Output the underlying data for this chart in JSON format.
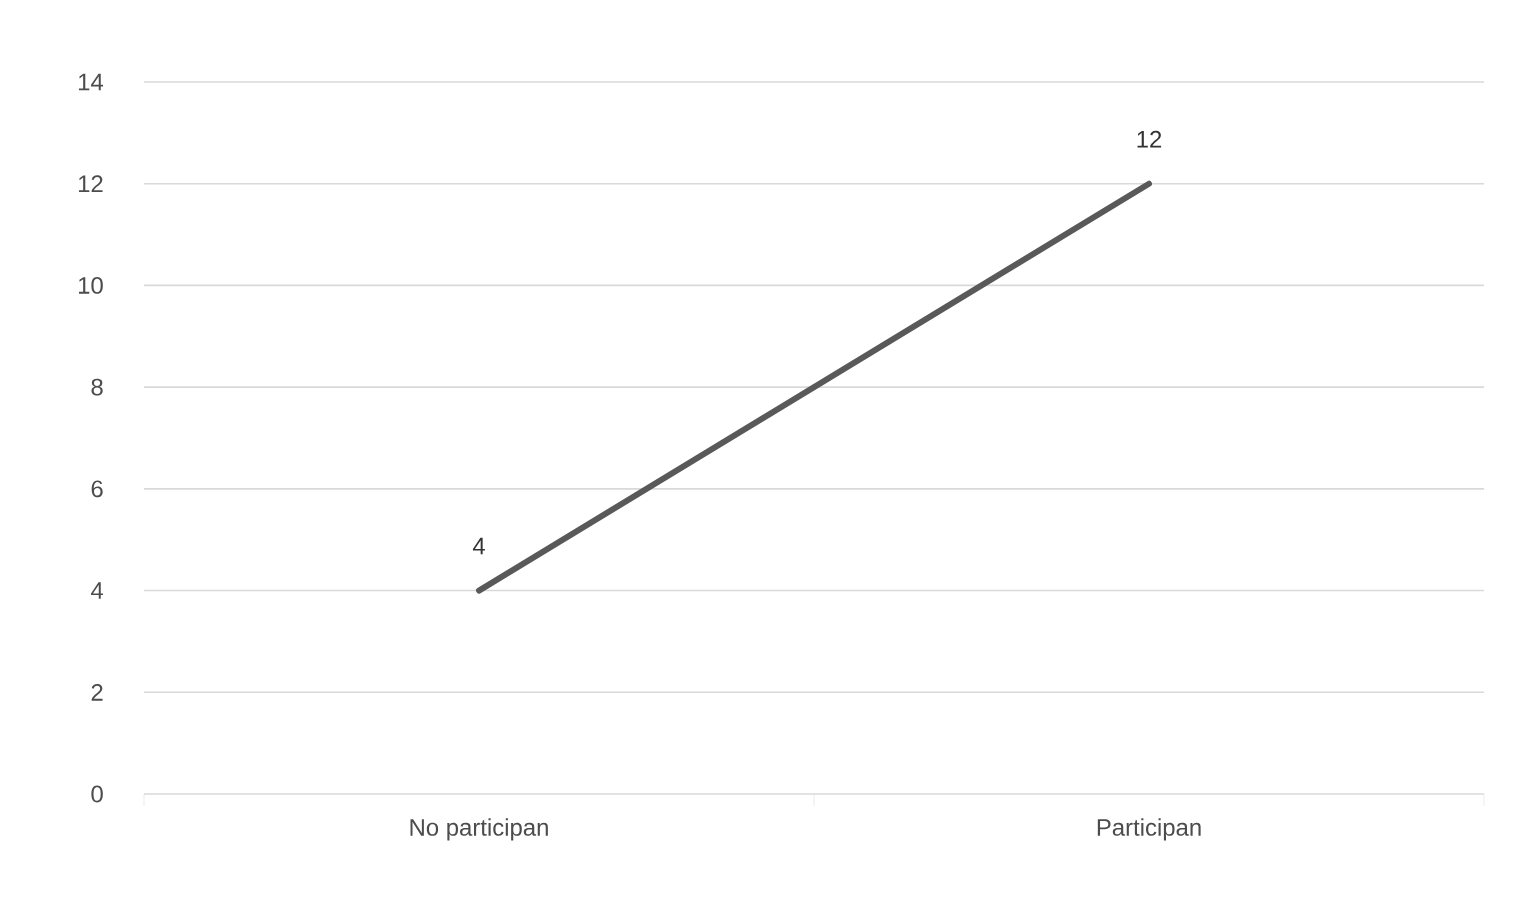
{
  "chart_data": {
    "type": "line",
    "categories": [
      "No participan",
      "Participan"
    ],
    "series": [
      {
        "color": "#595959",
        "values": [
          4,
          12
        ]
      }
    ],
    "ylim": [
      0,
      14
    ],
    "yticks": [
      0,
      2,
      4,
      6,
      8,
      10,
      12,
      14
    ],
    "grid": "y",
    "data_labels": true,
    "marker": "none",
    "line_style": "solid"
  }
}
